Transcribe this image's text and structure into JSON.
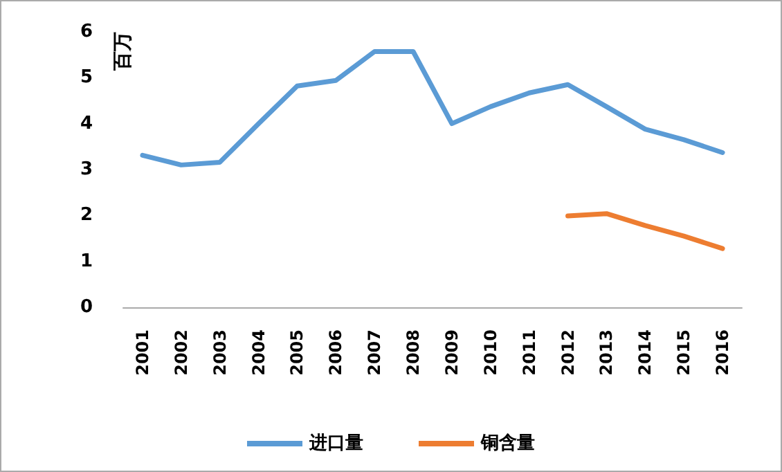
{
  "chart_data": {
    "type": "line",
    "ylabel": "百万",
    "categories": [
      "2001",
      "2002",
      "2003",
      "2004",
      "2005",
      "2006",
      "2007",
      "2008",
      "2009",
      "2010",
      "2011",
      "2012",
      "2013",
      "2014",
      "2015",
      "2016"
    ],
    "series": [
      {
        "name": "进口量",
        "color": "#5b9bd5",
        "values": [
          3.31,
          3.1,
          3.16,
          4.0,
          4.82,
          4.94,
          5.57,
          5.57,
          4.0,
          4.37,
          4.67,
          4.85,
          4.37,
          3.88,
          3.65,
          3.37
        ]
      },
      {
        "name": "铜含量",
        "color": "#ed7d31",
        "values": [
          null,
          null,
          null,
          null,
          null,
          null,
          null,
          null,
          null,
          null,
          null,
          1.99,
          2.04,
          1.78,
          1.55,
          1.28
        ]
      }
    ],
    "ylim": [
      0,
      6
    ],
    "yticks": [
      0,
      1,
      2,
      3,
      4,
      5,
      6
    ],
    "grid": false,
    "legend": "bottom",
    "marker": "none",
    "line_style": "solid"
  }
}
